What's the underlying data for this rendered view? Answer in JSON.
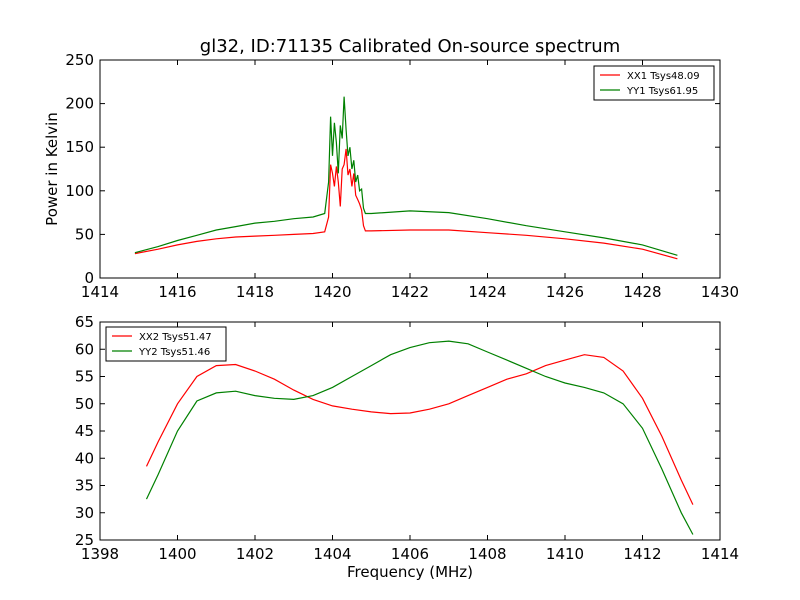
{
  "figure": {
    "title": "gl32, ID:71135 Calibrated On-source spectrum"
  },
  "chart_data": [
    {
      "type": "line",
      "ylabel": "Power in Kelvin",
      "xlabel": "",
      "xlim": [
        1414,
        1430
      ],
      "ylim": [
        0,
        250
      ],
      "xticks": [
        1414,
        1416,
        1418,
        1420,
        1422,
        1424,
        1426,
        1428,
        1430
      ],
      "yticks": [
        0,
        50,
        100,
        150,
        200,
        250
      ],
      "legend_position": "top-right",
      "grid": false,
      "series": [
        {
          "name": "XX1 Tsys48.09",
          "color": "#ff0000",
          "points": [
            [
              1414.9,
              28
            ],
            [
              1415.5,
              33
            ],
            [
              1416,
              38
            ],
            [
              1416.5,
              42
            ],
            [
              1417,
              45
            ],
            [
              1417.5,
              47
            ],
            [
              1418,
              48
            ],
            [
              1418.5,
              49
            ],
            [
              1419,
              50
            ],
            [
              1419.5,
              51
            ],
            [
              1419.8,
              53
            ],
            [
              1419.9,
              70
            ],
            [
              1419.95,
              130
            ],
            [
              1420.0,
              120
            ],
            [
              1420.05,
              105
            ],
            [
              1420.1,
              128
            ],
            [
              1420.15,
              110
            ],
            [
              1420.2,
              82
            ],
            [
              1420.25,
              125
            ],
            [
              1420.3,
              130
            ],
            [
              1420.35,
              148
            ],
            [
              1420.4,
              118
            ],
            [
              1420.45,
              125
            ],
            [
              1420.5,
              105
            ],
            [
              1420.55,
              120
            ],
            [
              1420.6,
              95
            ],
            [
              1420.65,
              90
            ],
            [
              1420.7,
              85
            ],
            [
              1420.75,
              78
            ],
            [
              1420.8,
              60
            ],
            [
              1420.85,
              54
            ],
            [
              1421,
              54
            ],
            [
              1422,
              55
            ],
            [
              1423,
              55
            ],
            [
              1424,
              52
            ],
            [
              1425,
              49
            ],
            [
              1426,
              45
            ],
            [
              1427,
              40
            ],
            [
              1428,
              33
            ],
            [
              1428.9,
              22
            ]
          ]
        },
        {
          "name": "YY1 Tsys61.95",
          "color": "#008000",
          "points": [
            [
              1414.9,
              29
            ],
            [
              1415.5,
              36
            ],
            [
              1416,
              43
            ],
            [
              1416.5,
              49
            ],
            [
              1417,
              55
            ],
            [
              1417.5,
              59
            ],
            [
              1418,
              63
            ],
            [
              1418.5,
              65
            ],
            [
              1419,
              68
            ],
            [
              1419.5,
              70
            ],
            [
              1419.8,
              74
            ],
            [
              1419.9,
              110
            ],
            [
              1419.95,
              185
            ],
            [
              1420.0,
              140
            ],
            [
              1420.05,
              178
            ],
            [
              1420.1,
              155
            ],
            [
              1420.15,
              120
            ],
            [
              1420.2,
              175
            ],
            [
              1420.25,
              160
            ],
            [
              1420.3,
              208
            ],
            [
              1420.35,
              170
            ],
            [
              1420.4,
              140
            ],
            [
              1420.45,
              150
            ],
            [
              1420.5,
              125
            ],
            [
              1420.55,
              135
            ],
            [
              1420.6,
              110
            ],
            [
              1420.65,
              118
            ],
            [
              1420.7,
              100
            ],
            [
              1420.75,
              102
            ],
            [
              1420.8,
              80
            ],
            [
              1420.85,
              74
            ],
            [
              1421,
              74
            ],
            [
              1422,
              77
            ],
            [
              1423,
              75
            ],
            [
              1424,
              68
            ],
            [
              1425,
              60
            ],
            [
              1426,
              53
            ],
            [
              1427,
              46
            ],
            [
              1428,
              38
            ],
            [
              1428.9,
              26
            ]
          ]
        }
      ]
    },
    {
      "type": "line",
      "ylabel": "",
      "xlabel": "Frequency (MHz)",
      "xlim": [
        1398,
        1414
      ],
      "ylim": [
        25,
        65
      ],
      "xticks": [
        1398,
        1400,
        1402,
        1404,
        1406,
        1408,
        1410,
        1412,
        1414
      ],
      "yticks": [
        25,
        30,
        35,
        40,
        45,
        50,
        55,
        60,
        65
      ],
      "legend_position": "top-left",
      "grid": false,
      "series": [
        {
          "name": "XX2 Tsys51.47",
          "color": "#ff0000",
          "points": [
            [
              1399.2,
              38.5
            ],
            [
              1399.5,
              43
            ],
            [
              1400,
              50
            ],
            [
              1400.5,
              55
            ],
            [
              1401,
              57
            ],
            [
              1401.5,
              57.2
            ],
            [
              1402,
              56
            ],
            [
              1402.5,
              54.5
            ],
            [
              1403,
              52.5
            ],
            [
              1403.5,
              50.8
            ],
            [
              1404,
              49.6
            ],
            [
              1404.5,
              49
            ],
            [
              1405,
              48.5
            ],
            [
              1405.5,
              48.2
            ],
            [
              1406,
              48.3
            ],
            [
              1406.5,
              49
            ],
            [
              1407,
              50
            ],
            [
              1407.5,
              51.5
            ],
            [
              1408,
              53
            ],
            [
              1408.5,
              54.5
            ],
            [
              1409,
              55.5
            ],
            [
              1409.5,
              57
            ],
            [
              1410,
              58
            ],
            [
              1410.5,
              59
            ],
            [
              1411,
              58.5
            ],
            [
              1411.5,
              56
            ],
            [
              1412,
              51
            ],
            [
              1412.5,
              44
            ],
            [
              1413,
              36
            ],
            [
              1413.3,
              31.5
            ]
          ]
        },
        {
          "name": "YY2 Tsys51.46",
          "color": "#008000",
          "points": [
            [
              1399.2,
              32.5
            ],
            [
              1399.5,
              37
            ],
            [
              1400,
              45
            ],
            [
              1400.5,
              50.5
            ],
            [
              1401,
              52
            ],
            [
              1401.5,
              52.3
            ],
            [
              1402,
              51.5
            ],
            [
              1402.5,
              51
            ],
            [
              1403,
              50.8
            ],
            [
              1403.5,
              51.5
            ],
            [
              1404,
              53
            ],
            [
              1404.5,
              55
            ],
            [
              1405,
              57
            ],
            [
              1405.5,
              59
            ],
            [
              1406,
              60.3
            ],
            [
              1406.5,
              61.2
            ],
            [
              1407,
              61.5
            ],
            [
              1407.5,
              61
            ],
            [
              1408,
              59.5
            ],
            [
              1408.5,
              58
            ],
            [
              1409,
              56.5
            ],
            [
              1409.5,
              55
            ],
            [
              1410,
              53.8
            ],
            [
              1410.5,
              53
            ],
            [
              1411,
              52
            ],
            [
              1411.5,
              50
            ],
            [
              1412,
              45.5
            ],
            [
              1412.5,
              38
            ],
            [
              1413,
              30
            ],
            [
              1413.3,
              26
            ]
          ]
        }
      ]
    }
  ]
}
